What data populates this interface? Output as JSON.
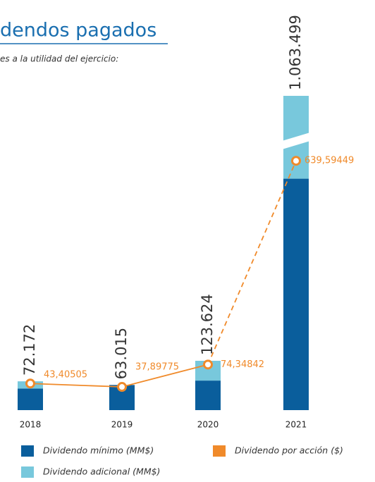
{
  "chart_data": {
    "type": "bar",
    "title": "dendos pagados",
    "subtitle": "es a la utilidad del ejercicio:",
    "categories": [
      "2018",
      "2019",
      "2020",
      "2021"
    ],
    "series": [
      {
        "name": "Dividendo mínimo (MM$)",
        "color": "#0a5e9c",
        "values": [
          54000,
          63015,
          74000,
          580000
        ]
      },
      {
        "name": "Dividendo adicional (MM$)",
        "color": "#78c8dc",
        "values": [
          18172,
          0,
          49624,
          483499
        ]
      }
    ],
    "totals": [
      72172,
      63015,
      123624,
      1063499
    ],
    "totals_labels": [
      "72.172",
      "63.015",
      "123.624",
      "1.063.499"
    ],
    "line": {
      "name": "Dividendo por acción ($)",
      "color": "#f08a2a",
      "axis": "y2",
      "values": [
        43.40505,
        37.89775,
        74.34842,
        639.59449
      ],
      "value_labels": [
        "43,40505",
        "37,89775",
        "74,34842",
        "639,59449"
      ]
    }
  }
}
